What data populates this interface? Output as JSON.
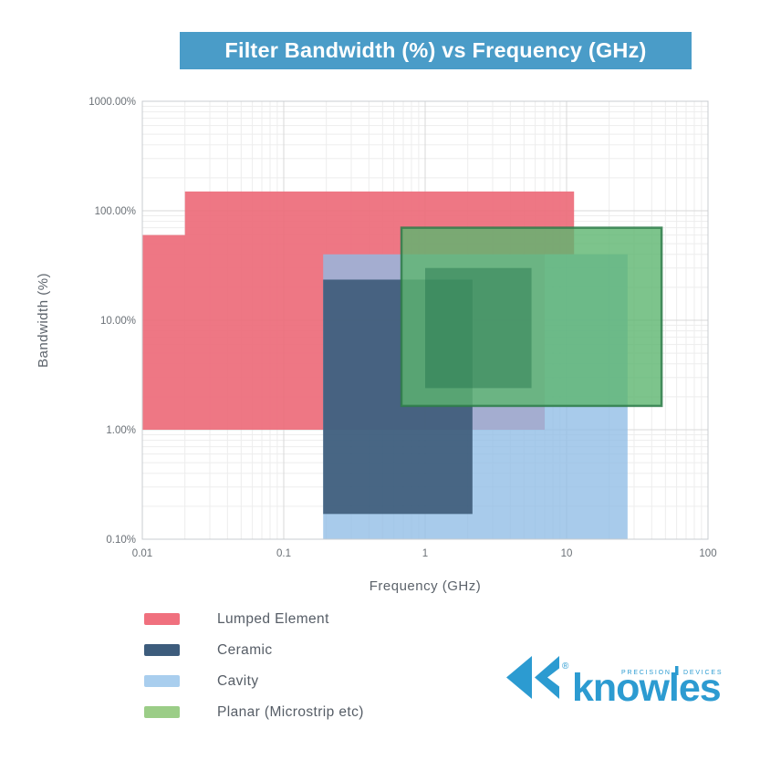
{
  "title": {
    "text": "Filter Bandwidth (%) vs Frequency (GHz)",
    "background": "#4a9cc8",
    "text_color": "#ffffff"
  },
  "chart_data": {
    "type": "area",
    "subtype": "log-log technology regions",
    "title": "Filter Bandwidth (%) vs Frequency (GHz)",
    "xlabel": "Frequency (GHz)",
    "ylabel": "Bandwidth (%)",
    "x_axis": {
      "scale": "log",
      "min": 0.01,
      "max": 100,
      "ticks": [
        {
          "v": 0.01,
          "label": "0.01"
        },
        {
          "v": 0.1,
          "label": "0.1"
        },
        {
          "v": 1,
          "label": "1"
        },
        {
          "v": 10,
          "label": "10"
        },
        {
          "v": 100,
          "label": "100"
        }
      ]
    },
    "y_axis": {
      "scale": "log",
      "min": 0.1,
      "max": 1000,
      "ticks": [
        {
          "v": 1000,
          "label": "1000.00%"
        },
        {
          "v": 100,
          "label": "100.00%"
        },
        {
          "v": 10,
          "label": "10.00%"
        },
        {
          "v": 1,
          "label": "1.00%"
        },
        {
          "v": 0.1,
          "label": "0.10%"
        }
      ]
    },
    "grid": {
      "minor_color": "#ededed",
      "major_color": "#d8d8d8",
      "border_color": "#c9ccd0"
    },
    "series": [
      {
        "name": "Lumped Element",
        "color": "#ed6b79",
        "opacity": 0.92,
        "regions": [
          {
            "type": "polygon",
            "points_ghz_pct": [
              [
                0.01,
                1
              ],
              [
                0.01,
                60
              ],
              [
                0.02,
                60
              ],
              [
                0.02,
                150
              ],
              [
                11.3,
                150
              ],
              [
                11.3,
                40
              ],
              [
                7,
                40
              ],
              [
                7,
                1
              ]
            ]
          }
        ]
      },
      {
        "name": "Cavity",
        "color": "#8fbde6",
        "opacity": 0.78,
        "regions": [
          {
            "type": "rect",
            "freq_ghz": [
              0.19,
              27
            ],
            "bandwidth_pct": [
              0.1,
              40
            ]
          }
        ]
      },
      {
        "name": "Ceramic",
        "color": "#3a5875",
        "opacity": 0.88,
        "regions": [
          {
            "type": "rect",
            "freq_ghz": [
              0.19,
              2.16
            ],
            "bandwidth_pct": [
              0.17,
              23.5
            ]
          }
        ]
      },
      {
        "name": "Planar (Microstrip etc)",
        "color": "#5cb56f",
        "opacity": 0.8,
        "stroke": "#2e7d4a",
        "stroke_opacity": 0.85,
        "stroke_width": 2.5,
        "regions": [
          {
            "type": "rect",
            "freq_ghz": [
              0.68,
              47
            ],
            "bandwidth_pct": [
              1.65,
              70
            ]
          },
          {
            "type": "rect",
            "freq_ghz": [
              1,
              5.65
            ],
            "bandwidth_pct": [
              2.4,
              30
            ],
            "fill": "#1c6b45",
            "opacity": 0.4,
            "no_stroke": true
          }
        ]
      }
    ],
    "legend_position": "bottom-left"
  },
  "axis_text": {
    "tick_color": "#6a7076",
    "title_color": "#5c636b"
  },
  "legend": {
    "items": [
      {
        "label": "Lumped Element",
        "color": "#f0707e"
      },
      {
        "label": "Ceramic",
        "color": "#3d5c7c"
      },
      {
        "label": "Cavity",
        "color": "#a9ceee"
      },
      {
        "label": "Planar (Microstrip etc)",
        "color": "#9bcd87"
      }
    ]
  },
  "logo": {
    "brand": "knowles",
    "tagline_left": "PRECISION",
    "tagline_right": "DEVICES",
    "registered": "®",
    "color": "#2c9bd1"
  }
}
